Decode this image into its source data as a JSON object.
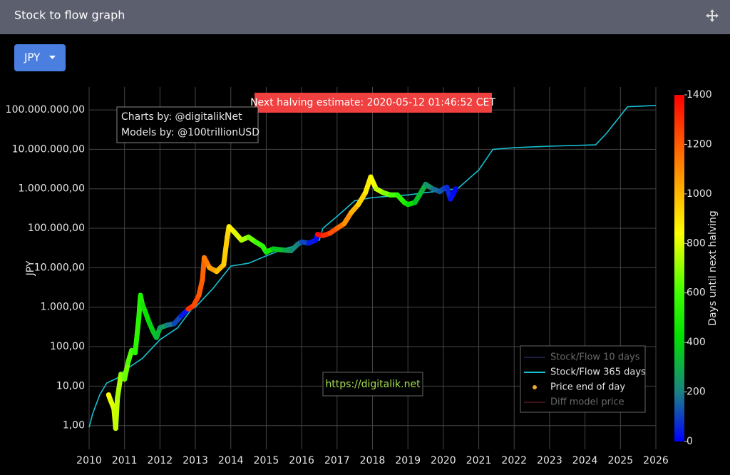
{
  "header": {
    "title": "Stock to flow graph"
  },
  "dropdown": {
    "label": "JPY"
  },
  "chart_data": {
    "type": "scatter",
    "y_label": "JPY",
    "log_y": true,
    "grid": true,
    "legend": "lower right",
    "xlim": [
      2010,
      2026
    ],
    "ylim": [
      0.25,
      380000000
    ],
    "xticks": [
      2010,
      2011,
      2012,
      2013,
      2014,
      2015,
      2016,
      2017,
      2018,
      2019,
      2020,
      2021,
      2022,
      2023,
      2024,
      2025,
      2026
    ],
    "yticks": [
      {
        "value": 1,
        "label": "1,00"
      },
      {
        "value": 10,
        "label": "10,00"
      },
      {
        "value": 100,
        "label": "100,00"
      },
      {
        "value": 1000,
        "label": "1.000,00"
      },
      {
        "value": 10000,
        "label": "10.000,00"
      },
      {
        "value": 100000,
        "label": "100.000,00"
      },
      {
        "value": 1000000,
        "label": "1.000.000,00"
      },
      {
        "value": 10000000,
        "label": "10.000.000,00"
      },
      {
        "value": 100000000,
        "label": "100.000.000,00"
      }
    ],
    "annotations": [
      "Next halving estimate: 2020-05-12 01:46:52 CET",
      "Charts by: @digitalikNet",
      "Models by: @100trillionUSD",
      "https://digitalik.net"
    ],
    "series": [
      {
        "name": "Stock/Flow 10 days",
        "color": "#3c3c8c",
        "visible": false
      },
      {
        "name": "Stock/Flow 365 days",
        "color": "#17becf",
        "mode": "line",
        "x": [
          2010.0,
          2010.1,
          2010.3,
          2010.5,
          2010.8,
          2011.0,
          2011.5,
          2012.0,
          2012.5,
          2012.9,
          2013.0,
          2013.5,
          2014.0,
          2014.5,
          2015.0,
          2015.5,
          2016.0,
          2016.5,
          2016.6,
          2017.0,
          2017.5,
          2018.0,
          2018.5,
          2019.0,
          2019.5,
          2020.0,
          2020.4,
          2021.0,
          2021.4,
          2022.0,
          2023.0,
          2024.3,
          2024.6,
          2025.2,
          2026.0
        ],
        "values": [
          0.9,
          2,
          6,
          12,
          16,
          25,
          50,
          150,
          300,
          900,
          1000,
          3000,
          11000,
          13000,
          20000,
          30000,
          40000,
          50000,
          100000,
          200000,
          500000,
          600000,
          650000,
          700000,
          800000,
          900000,
          1000000,
          3000000,
          10000000,
          11000000,
          12000000,
          13000000,
          25000000,
          120000000,
          130000000
        ]
      },
      {
        "name": "Price end of day",
        "color": "#f0a830",
        "mode": "markers",
        "x": [
          2010.55,
          2010.6,
          2010.7,
          2010.75,
          2010.8,
          2010.9,
          2011.0,
          2011.1,
          2011.2,
          2011.3,
          2011.4,
          2011.45,
          2011.5,
          2011.6,
          2011.7,
          2011.8,
          2011.9,
          2012.0,
          2012.2,
          2012.4,
          2012.6,
          2012.8,
          2012.95,
          2013.1,
          2013.2,
          2013.25,
          2013.4,
          2013.6,
          2013.8,
          2013.9,
          2013.95,
          2014.1,
          2014.3,
          2014.5,
          2014.7,
          2014.9,
          2015.0,
          2015.2,
          2015.5,
          2015.7,
          2015.9,
          2016.0,
          2016.2,
          2016.4,
          2016.45,
          2016.6,
          2016.8,
          2017.0,
          2017.2,
          2017.4,
          2017.6,
          2017.8,
          2017.95,
          2018.1,
          2018.3,
          2018.5,
          2018.7,
          2018.9,
          2019.0,
          2019.2,
          2019.4,
          2019.5,
          2019.7,
          2019.9,
          2020.0,
          2020.1,
          2020.2,
          2020.3,
          2020.35
        ],
        "values": [
          6,
          4.5,
          2.7,
          0.85,
          5,
          20,
          15,
          40,
          80,
          70,
          500,
          2000,
          1200,
          700,
          400,
          250,
          170,
          300,
          350,
          380,
          600,
          900,
          1100,
          2000,
          5000,
          18000,
          10000,
          8000,
          12000,
          60000,
          110000,
          80000,
          50000,
          60000,
          45000,
          35000,
          25000,
          30000,
          28000,
          27000,
          40000,
          45000,
          42000,
          50000,
          70000,
          65000,
          75000,
          100000,
          130000,
          250000,
          400000,
          800000,
          2000000,
          1000000,
          800000,
          700000,
          700000,
          450000,
          400000,
          450000,
          900000,
          1300000,
          1000000,
          850000,
          1000000,
          1100000,
          550000,
          800000,
          1000000
        ],
        "days": [
          858,
          840,
          803,
          785,
          767,
          730,
          694,
          657,
          621,
          584,
          548,
          529,
          511,
          475,
          438,
          402,
          365,
          329,
          256,
          183,
          110,
          37,
          1296,
          1241,
          1205,
          1186,
          1132,
          1059,
          986,
          949,
          931,
          876,
          803,
          730,
          657,
          584,
          548,
          475,
          365,
          292,
          219,
          183,
          110,
          37,
          18,
          1376,
          1303,
          1230,
          1157,
          1084,
          1011,
          938,
          883,
          829,
          756,
          683,
          610,
          537,
          500,
          427,
          354,
          318,
          245,
          172,
          135,
          99,
          62,
          26,
          7
        ]
      },
      {
        "name": "Diff model price",
        "color": "#8c2a3a",
        "visible": false
      }
    ],
    "colorbar": {
      "title": "Days until next halving",
      "lim": [
        0,
        1400
      ],
      "ticks": [
        0,
        200,
        400,
        600,
        800,
        1000,
        1200,
        1400
      ],
      "colorscale": [
        [
          0,
          "#0000ff"
        ],
        [
          0.14,
          "#1b7f86"
        ],
        [
          0.3,
          "#00e000"
        ],
        [
          0.43,
          "#40ff00"
        ],
        [
          0.6,
          "#ffff00"
        ],
        [
          0.75,
          "#ffa000"
        ],
        [
          1,
          "#ff0000"
        ]
      ]
    }
  }
}
